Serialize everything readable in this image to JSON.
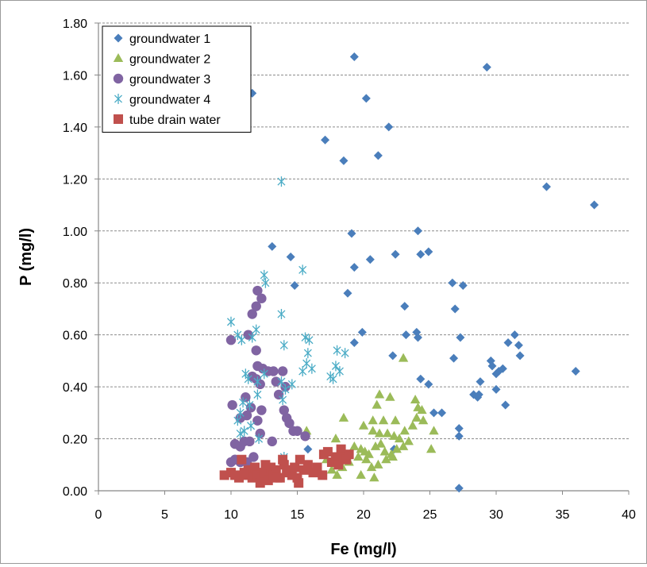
{
  "chart_data": {
    "type": "scatter",
    "xlabel": "Fe (mg/l)",
    "ylabel": "P (mg/l)",
    "xlim": [
      0,
      40
    ],
    "ylim": [
      0,
      1.8
    ],
    "x_ticks": [
      "0",
      "5",
      "10",
      "15",
      "20",
      "25",
      "30",
      "35",
      "40"
    ],
    "y_ticks": [
      "0.00",
      "0.20",
      "0.40",
      "0.60",
      "0.80",
      "1.00",
      "1.20",
      "1.40",
      "1.60",
      "1.80"
    ],
    "grid": "horizontal dashed",
    "legend_position": "top-left",
    "series": [
      {
        "name": "groundwater 1",
        "marker": "diamond",
        "color": "#4A7EBB",
        "points": [
          [
            11.6,
            1.53
          ],
          [
            19.3,
            1.67
          ],
          [
            20.2,
            1.51
          ],
          [
            29.3,
            1.63
          ],
          [
            17.1,
            1.35
          ],
          [
            18.5,
            1.27
          ],
          [
            21.1,
            1.29
          ],
          [
            21.9,
            1.4
          ],
          [
            33.8,
            1.17
          ],
          [
            37.4,
            1.1
          ],
          [
            13.1,
            0.94
          ],
          [
            14.5,
            0.9
          ],
          [
            14.8,
            0.79
          ],
          [
            19.1,
            0.99
          ],
          [
            19.3,
            0.86
          ],
          [
            20.5,
            0.89
          ],
          [
            22.4,
            0.91
          ],
          [
            24.1,
            1.0
          ],
          [
            24.3,
            0.91
          ],
          [
            24.9,
            0.92
          ],
          [
            18.8,
            0.76
          ],
          [
            19.3,
            0.57
          ],
          [
            19.9,
            0.61
          ],
          [
            22.2,
            0.52
          ],
          [
            23.1,
            0.71
          ],
          [
            23.2,
            0.6
          ],
          [
            24.0,
            0.61
          ],
          [
            24.1,
            0.59
          ],
          [
            24.3,
            0.43
          ],
          [
            24.9,
            0.41
          ],
          [
            25.3,
            0.3
          ],
          [
            25.9,
            0.3
          ],
          [
            26.7,
            0.8
          ],
          [
            26.8,
            0.51
          ],
          [
            26.9,
            0.7
          ],
          [
            27.5,
            0.79
          ],
          [
            27.3,
            0.59
          ],
          [
            27.2,
            0.24
          ],
          [
            27.2,
            0.21
          ],
          [
            27.2,
            0.01
          ],
          [
            28.3,
            0.37
          ],
          [
            28.6,
            0.36
          ],
          [
            28.7,
            0.37
          ],
          [
            28.8,
            0.42
          ],
          [
            29.6,
            0.5
          ],
          [
            29.7,
            0.48
          ],
          [
            30.0,
            0.39
          ],
          [
            30.0,
            0.45
          ],
          [
            30.2,
            0.46
          ],
          [
            30.5,
            0.47
          ],
          [
            30.7,
            0.33
          ],
          [
            30.9,
            0.57
          ],
          [
            31.4,
            0.6
          ],
          [
            31.7,
            0.56
          ],
          [
            31.8,
            0.52
          ],
          [
            36.0,
            0.46
          ],
          [
            15.8,
            0.16
          ],
          [
            22.3,
            0.16
          ]
        ]
      },
      {
        "name": "groundwater 2",
        "marker": "triangle",
        "color": "#9BBB59",
        "points": [
          [
            23.0,
            0.51
          ],
          [
            21.2,
            0.37
          ],
          [
            22.0,
            0.36
          ],
          [
            23.9,
            0.35
          ],
          [
            24.1,
            0.32
          ],
          [
            24.4,
            0.31
          ],
          [
            21.0,
            0.33
          ],
          [
            20.7,
            0.27
          ],
          [
            21.5,
            0.27
          ],
          [
            22.4,
            0.27
          ],
          [
            20.0,
            0.25
          ],
          [
            20.7,
            0.23
          ],
          [
            21.2,
            0.22
          ],
          [
            21.8,
            0.22
          ],
          [
            22.3,
            0.21
          ],
          [
            22.7,
            0.2
          ],
          [
            23.1,
            0.23
          ],
          [
            23.7,
            0.25
          ],
          [
            24.0,
            0.28
          ],
          [
            24.5,
            0.27
          ],
          [
            25.3,
            0.23
          ],
          [
            17.9,
            0.2
          ],
          [
            18.5,
            0.28
          ],
          [
            19.3,
            0.17
          ],
          [
            19.6,
            0.13
          ],
          [
            19.8,
            0.16
          ],
          [
            20.1,
            0.15
          ],
          [
            20.4,
            0.14
          ],
          [
            20.9,
            0.17
          ],
          [
            21.3,
            0.18
          ],
          [
            21.6,
            0.15
          ],
          [
            22.1,
            0.14
          ],
          [
            22.5,
            0.16
          ],
          [
            23.0,
            0.17
          ],
          [
            23.4,
            0.19
          ],
          [
            25.1,
            0.16
          ],
          [
            15.7,
            0.23
          ],
          [
            15.9,
            0.08
          ],
          [
            17.2,
            0.12
          ],
          [
            17.6,
            0.08
          ],
          [
            18.0,
            0.06
          ],
          [
            18.4,
            0.09
          ],
          [
            18.9,
            0.11
          ],
          [
            19.8,
            0.06
          ],
          [
            20.2,
            0.12
          ],
          [
            20.6,
            0.09
          ],
          [
            21.1,
            0.1
          ],
          [
            21.7,
            0.12
          ],
          [
            22.2,
            0.13
          ],
          [
            20.8,
            0.05
          ]
        ]
      },
      {
        "name": "groundwater 3",
        "marker": "circle",
        "color": "#8064A2",
        "points": [
          [
            11.6,
            0.68
          ],
          [
            11.9,
            0.71
          ],
          [
            12.0,
            0.77
          ],
          [
            12.3,
            0.74
          ],
          [
            10.0,
            0.58
          ],
          [
            11.3,
            0.6
          ],
          [
            11.9,
            0.54
          ],
          [
            12.0,
            0.48
          ],
          [
            12.4,
            0.47
          ],
          [
            12.8,
            0.46
          ],
          [
            13.2,
            0.46
          ],
          [
            13.9,
            0.46
          ],
          [
            11.6,
            0.44
          ],
          [
            12.2,
            0.41
          ],
          [
            13.6,
            0.37
          ],
          [
            14.1,
            0.4
          ],
          [
            14.0,
            0.31
          ],
          [
            14.2,
            0.28
          ],
          [
            14.4,
            0.26
          ],
          [
            14.7,
            0.23
          ],
          [
            15.0,
            0.23
          ],
          [
            15.6,
            0.21
          ],
          [
            10.1,
            0.33
          ],
          [
            10.7,
            0.28
          ],
          [
            11.2,
            0.29
          ],
          [
            11.5,
            0.32
          ],
          [
            12.3,
            0.31
          ],
          [
            12.0,
            0.27
          ],
          [
            12.2,
            0.22
          ],
          [
            13.1,
            0.19
          ],
          [
            10.3,
            0.18
          ],
          [
            10.7,
            0.17
          ],
          [
            11.0,
            0.19
          ],
          [
            11.4,
            0.19
          ],
          [
            10.3,
            0.12
          ],
          [
            10.7,
            0.11
          ],
          [
            11.2,
            0.11
          ],
          [
            11.7,
            0.13
          ],
          [
            10.0,
            0.11
          ],
          [
            11.9,
            0.43
          ],
          [
            13.4,
            0.42
          ],
          [
            11.1,
            0.36
          ]
        ]
      },
      {
        "name": "groundwater 4",
        "marker": "asterisk",
        "color": "#4BACC6",
        "points": [
          [
            13.8,
            1.19
          ],
          [
            12.5,
            0.83
          ],
          [
            12.6,
            0.8
          ],
          [
            15.4,
            0.85
          ],
          [
            10.0,
            0.65
          ],
          [
            10.5,
            0.6
          ],
          [
            10.8,
            0.58
          ],
          [
            11.6,
            0.59
          ],
          [
            11.9,
            0.62
          ],
          [
            13.8,
            0.68
          ],
          [
            14.0,
            0.56
          ],
          [
            15.6,
            0.59
          ],
          [
            15.9,
            0.58
          ],
          [
            15.8,
            0.53
          ],
          [
            13.8,
            0.42
          ],
          [
            14.1,
            0.39
          ],
          [
            14.6,
            0.41
          ],
          [
            15.4,
            0.46
          ],
          [
            15.7,
            0.49
          ],
          [
            16.1,
            0.47
          ],
          [
            17.5,
            0.44
          ],
          [
            17.7,
            0.43
          ],
          [
            17.9,
            0.48
          ],
          [
            18.0,
            0.54
          ],
          [
            18.2,
            0.46
          ],
          [
            18.6,
            0.53
          ],
          [
            11.1,
            0.45
          ],
          [
            11.3,
            0.43
          ],
          [
            12.5,
            0.45
          ],
          [
            12.0,
            0.37
          ],
          [
            11.4,
            0.33
          ],
          [
            10.9,
            0.34
          ],
          [
            10.7,
            0.3
          ],
          [
            10.5,
            0.27
          ],
          [
            10.7,
            0.22
          ],
          [
            11.0,
            0.23
          ],
          [
            11.5,
            0.25
          ],
          [
            12.0,
            0.42
          ],
          [
            13.9,
            0.35
          ],
          [
            12.1,
            0.2
          ],
          [
            14.0,
            0.13
          ]
        ]
      },
      {
        "name": "tube drain water",
        "marker": "square",
        "color": "#C0504D",
        "points": [
          [
            9.5,
            0.06
          ],
          [
            10.0,
            0.07
          ],
          [
            10.3,
            0.06
          ],
          [
            10.6,
            0.05
          ],
          [
            10.8,
            0.12
          ],
          [
            11.0,
            0.06
          ],
          [
            11.3,
            0.08
          ],
          [
            11.6,
            0.05
          ],
          [
            11.8,
            0.09
          ],
          [
            12.0,
            0.06
          ],
          [
            12.2,
            0.03
          ],
          [
            12.3,
            0.05
          ],
          [
            12.5,
            0.07
          ],
          [
            12.8,
            0.04
          ],
          [
            13.0,
            0.09
          ],
          [
            13.2,
            0.06
          ],
          [
            13.4,
            0.08
          ],
          [
            13.7,
            0.05
          ],
          [
            13.9,
            0.12
          ],
          [
            14.0,
            0.1
          ],
          [
            14.2,
            0.07
          ],
          [
            14.4,
            0.08
          ],
          [
            14.6,
            0.06
          ],
          [
            14.8,
            0.09
          ],
          [
            15.0,
            0.05
          ],
          [
            15.1,
            0.03
          ],
          [
            15.2,
            0.12
          ],
          [
            15.5,
            0.08
          ],
          [
            15.8,
            0.1
          ],
          [
            16.2,
            0.07
          ],
          [
            16.5,
            0.09
          ],
          [
            16.9,
            0.06
          ],
          [
            17.0,
            0.14
          ],
          [
            17.3,
            0.15
          ],
          [
            17.6,
            0.11
          ],
          [
            17.9,
            0.13
          ],
          [
            18.1,
            0.1
          ],
          [
            18.3,
            0.16
          ],
          [
            18.5,
            0.13
          ],
          [
            18.7,
            0.12
          ],
          [
            18.9,
            0.14
          ],
          [
            11.0,
            0.07
          ],
          [
            12.6,
            0.1
          ],
          [
            13.5,
            0.05
          ]
        ]
      }
    ]
  }
}
